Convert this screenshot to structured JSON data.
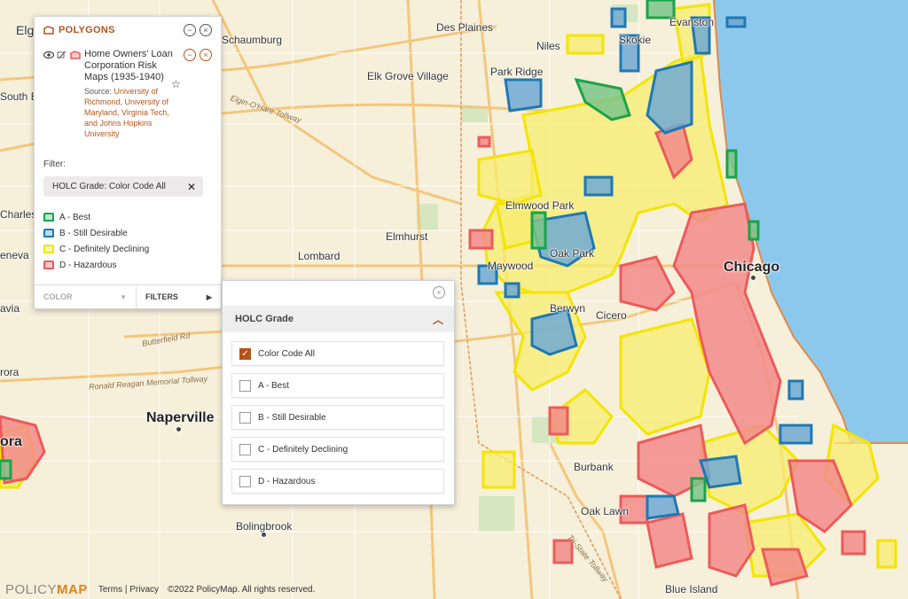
{
  "polygons_panel": {
    "title": "POLYGONS",
    "layer_title": "Home Owners’ Loan Corporation Risk Maps (1935-1940)",
    "source_label": "Source:",
    "source_text": "University of Richmond, University of Maryland, Virginia Tech, and Johns Hopkins University",
    "filter_label": "Filter:",
    "filter_chip": "HOLC Grade: Color Code All",
    "legend": [
      {
        "label": "A - Best",
        "color": "#1aa34a"
      },
      {
        "label": "B - Still Desirable",
        "color": "#1f78b4"
      },
      {
        "label": "C - Definitely Declining",
        "color": "#f2e500"
      },
      {
        "label": "D - Hazardous",
        "color": "#ec5b5b"
      }
    ],
    "tab_color": "COLOR",
    "tab_filters": "FILTERS"
  },
  "filter_panel": {
    "section_title": "HOLC Grade",
    "options": [
      {
        "label": "Color Code All",
        "checked": true
      },
      {
        "label": "A - Best",
        "checked": false
      },
      {
        "label": "B - Still Desirable",
        "checked": false
      },
      {
        "label": "C - Definitely Declining",
        "checked": false
      },
      {
        "label": "D - Hazardous",
        "checked": false
      }
    ]
  },
  "map_labels": {
    "elg": "Elg",
    "schaumburg": "Schaumburg",
    "des_plaines": "Des Plaines",
    "niles": "Niles",
    "skokie": "Skokie",
    "evanston": "Evanston",
    "park_ridge": "Park Ridge",
    "elk_grove": "Elk Grove Village",
    "south_el": "South El",
    "charles": "Charles",
    "elmwood_park": "Elmwood Park",
    "elmhurst": "Elmhurst",
    "lombard": "Lombard",
    "maywood": "Maywood",
    "oak_park": "Oak Park",
    "chicago": "Chicago",
    "berwyn": "Berwyn",
    "cicero": "Cicero",
    "geneva": "eneva",
    "avia": "avia",
    "rora1": "rora",
    "naperville": "Naperville",
    "rora2": "ora",
    "burbank": "Burbank",
    "oak_lawn": "Oak Lawn",
    "bolingbrook": "Bolingbrook",
    "blue_island": "Blue Island",
    "road_ohare": "Elgin-O'Hare Tollway",
    "road_butterfield": "Butterfield Rd",
    "road_reagan": "Ronald Reagan Memorial Tollway",
    "road_tristate": "Tri-State Tollway"
  },
  "footer": {
    "brand_a": "POLICY",
    "brand_b": "MAP",
    "links": "Terms | Privacy",
    "copyright": "©2022 PolicyMap. All rights reserved."
  },
  "colors": {
    "accent": "#b5541a",
    "grade_a": "#1aa34a",
    "grade_b": "#1f78b4",
    "grade_c": "#f2e500",
    "grade_d": "#ec5b5b",
    "lake": "#8cc8ec"
  }
}
